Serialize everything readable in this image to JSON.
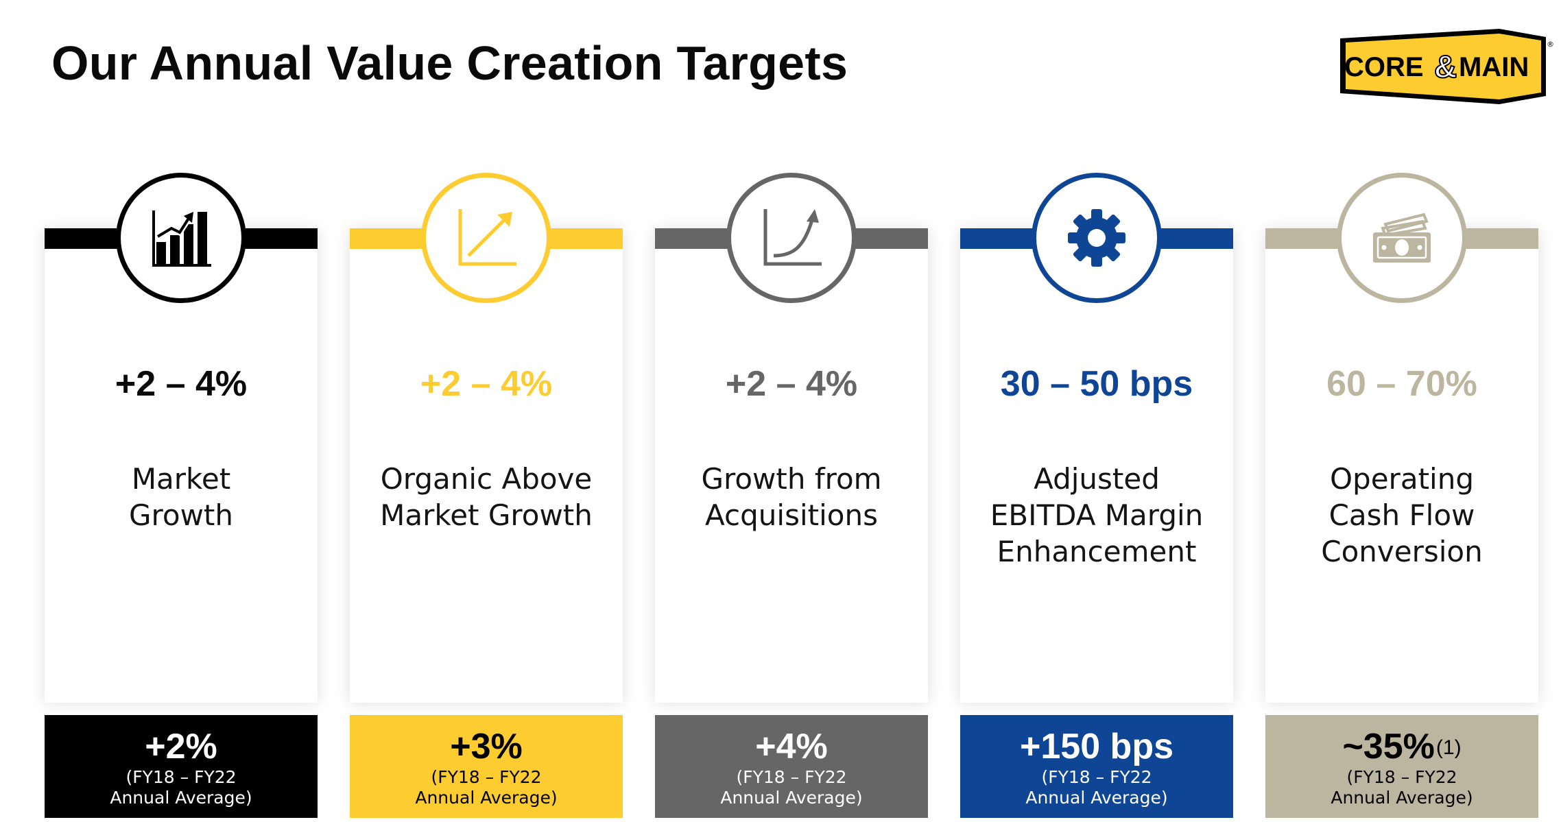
{
  "title": "Our Annual Value Creation Targets",
  "logo": {
    "left": "CORE",
    "amp": "&",
    "right": "MAIN",
    "reg": "®"
  },
  "colors": {
    "black": "#000000",
    "yellow": "#fdcc30",
    "gray": "#666666",
    "blue": "#0f4595",
    "tan": "#bcb5a0"
  },
  "cards": [
    {
      "icon": "bar-chart-icon",
      "metric": "+2 – 4%",
      "desc": [
        "Market",
        "Growth"
      ],
      "foot_value": "+2%",
      "foot_sup": "",
      "foot_note": [
        "(FY18 – FY22",
        "Annual Average)"
      ]
    },
    {
      "icon": "trend-line-icon",
      "metric": "+2 – 4%",
      "desc": [
        "Organic Above",
        "Market Growth"
      ],
      "foot_value": "+3%",
      "foot_sup": "",
      "foot_note": [
        "(FY18 – FY22",
        "Annual Average)"
      ]
    },
    {
      "icon": "exponential-curve-icon",
      "metric": "+2 – 4%",
      "desc": [
        "Growth from",
        "Acquisitions"
      ],
      "foot_value": "+4%",
      "foot_sup": "",
      "foot_note": [
        "(FY18 – FY22",
        "Annual Average)"
      ]
    },
    {
      "icon": "gear-icon",
      "metric": "30 – 50 bps",
      "desc": [
        "Adjusted",
        "EBITDA Margin",
        "Enhancement"
      ],
      "foot_value": "+150 bps",
      "foot_sup": "",
      "foot_note": [
        "(FY18 – FY22",
        "Annual Average)"
      ]
    },
    {
      "icon": "cash-icon",
      "metric": "60 – 70%",
      "desc": [
        "Operating",
        "Cash Flow",
        "Conversion"
      ],
      "foot_value": "~35%",
      "foot_sup": "(1)",
      "foot_note": [
        "(FY18 – FY22",
        "Annual Average)"
      ]
    }
  ]
}
